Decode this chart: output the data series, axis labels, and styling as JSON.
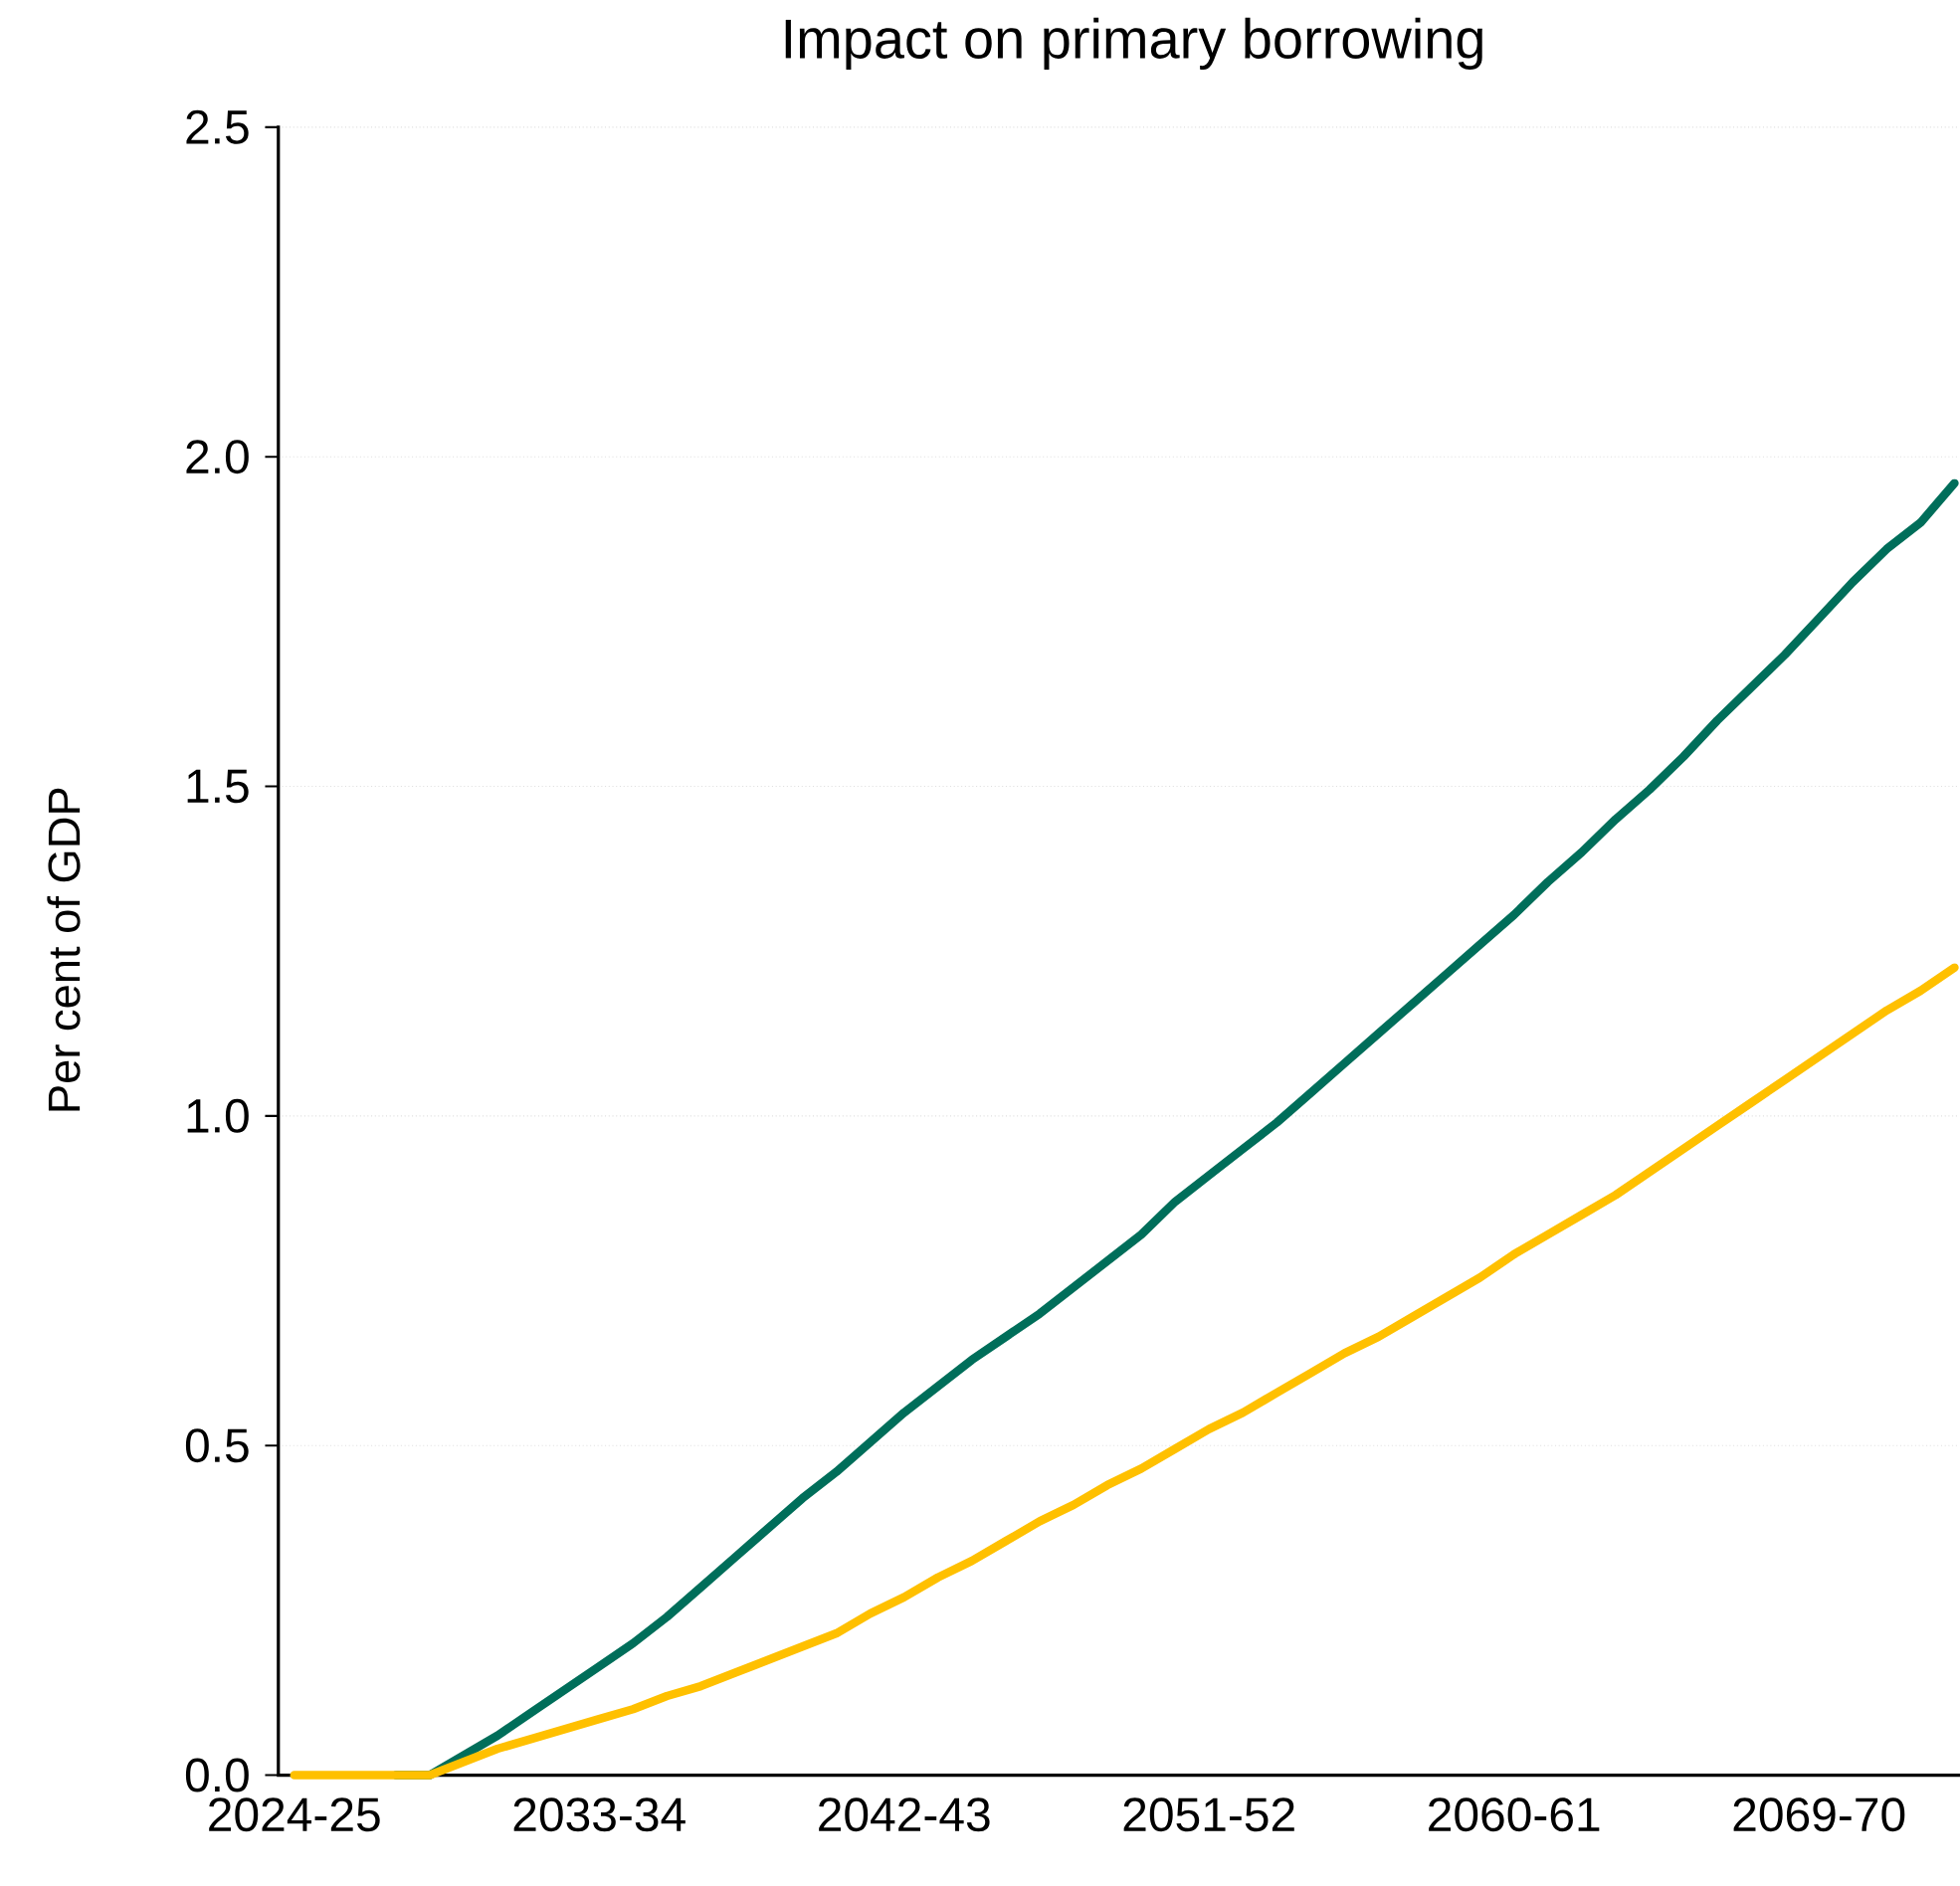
{
  "chart_data": {
    "type": "line",
    "title": "Impact on primary borrowing",
    "ylabel": "Per cent of GDP",
    "categories": [
      "2024-25",
      null,
      null,
      null,
      null,
      null,
      null,
      null,
      null,
      "2033-34",
      null,
      null,
      null,
      null,
      null,
      null,
      null,
      null,
      "2042-43",
      null,
      null,
      null,
      null,
      null,
      null,
      null,
      null,
      "2051-52",
      null,
      null,
      null,
      null,
      null,
      null,
      null,
      null,
      "2060-61",
      null,
      null,
      null,
      null,
      null,
      null,
      null,
      null,
      "2069-70",
      null,
      null,
      null,
      null
    ],
    "series": [
      {
        "color": "#006e5a",
        "values": [
          null,
          null,
          null,
          0,
          0,
          0.03,
          0.06,
          0.095,
          0.13,
          0.165,
          0.2,
          0.24,
          0.285,
          0.33,
          0.375,
          0.42,
          0.46,
          0.505,
          0.55,
          0.59,
          0.63,
          0.665,
          0.7,
          0.74,
          0.78,
          0.82,
          0.87,
          0.91,
          0.95,
          0.99,
          1.035,
          1.08,
          1.125,
          1.17,
          1.215,
          1.26,
          1.305,
          1.355,
          1.4,
          1.45,
          1.495,
          1.545,
          1.6,
          1.65,
          1.7,
          1.755,
          1.81,
          1.86,
          1.9,
          1.96
        ]
      },
      {
        "color": "#ffc000",
        "values": [
          0,
          0,
          0,
          0,
          0,
          0.02,
          0.04,
          0.055,
          0.07,
          0.085,
          0.1,
          0.12,
          0.135,
          0.155,
          0.175,
          0.195,
          0.215,
          0.245,
          0.27,
          0.3,
          0.325,
          0.355,
          0.385,
          0.41,
          0.44,
          0.465,
          0.495,
          0.525,
          0.55,
          0.58,
          0.61,
          0.64,
          0.665,
          0.695,
          0.725,
          0.755,
          0.79,
          0.82,
          0.85,
          0.88,
          0.915,
          0.95,
          0.985,
          1.02,
          1.055,
          1.09,
          1.125,
          1.16,
          1.19,
          1.225
        ]
      }
    ],
    "ylim": [
      0,
      2.5
    ],
    "yticks": [
      {
        "value": 0,
        "label": "0.0"
      },
      {
        "value": 0.5,
        "label": "0.5"
      },
      {
        "value": 1,
        "label": "1.0"
      },
      {
        "value": 1.5,
        "label": "1.5"
      },
      {
        "value": 2,
        "label": "2.0"
      },
      {
        "value": 2.5,
        "label": "2.5"
      }
    ],
    "grid": "y",
    "legend": false,
    "marker": "none",
    "line_style": "solid"
  }
}
